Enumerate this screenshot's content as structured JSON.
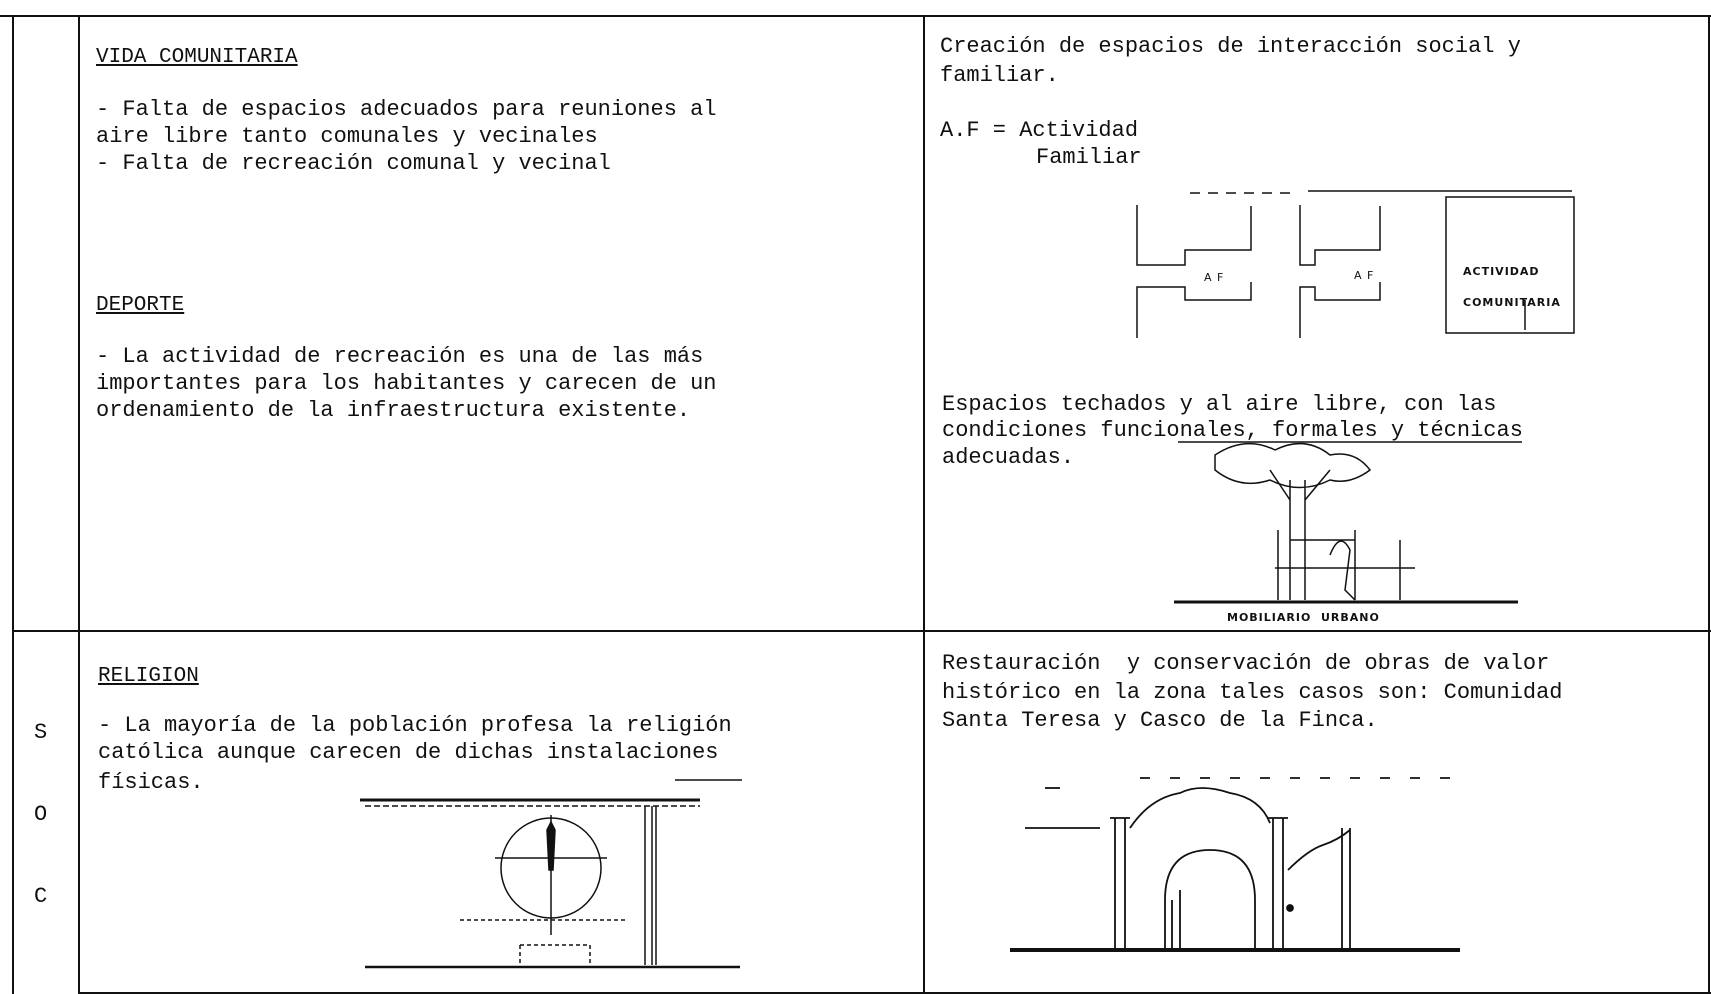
{
  "table": {
    "side_letters": [
      "S",
      "O",
      "C"
    ],
    "rows": [
      {
        "problems": [
          {
            "heading": "VIDA COMUNITARIA",
            "lines": [
              "- Falta de espacios adecuados para reuniones al",
              "aire libre tanto comunales y vecinales",
              "- Falta de recreación comunal y vecinal"
            ]
          },
          {
            "heading": "DEPORTE",
            "lines": [
              "- La actividad de recreación es una de las más",
              "importantes para los habitantes y carecen de un",
              "ordenamiento de la infraestructura existente."
            ]
          }
        ],
        "proposal": {
          "lines": [
            "Creación de espacios de interacción social y",
            "familiar."
          ],
          "legend": [
            "A.F = Actividad",
            "Familiar"
          ],
          "diagram": {
            "af_labels": [
              "A F",
              "A F"
            ],
            "community_label": [
              "ACTIVIDAD",
              "COMUNITARIA"
            ]
          },
          "lines2": [
            "Espacios techados y al aire libre, con las",
            "condiciones funcionales, formales y técnicas",
            "adecuadas."
          ],
          "caption": "MOBILIARIO  URBANO"
        }
      },
      {
        "problems": [
          {
            "heading": "RELIGION",
            "lines": [
              "- La mayoría de la población profesa la religión",
              "católica aunque carecen de dichas instalaciones",
              "físicas."
            ]
          }
        ],
        "proposal": {
          "lines": [
            "Restauración  y conservación de obras de valor",
            "histórico en la zona tales casos son: Comunidad",
            "Santa Teresa y Casco de la Finca."
          ]
        }
      }
    ]
  }
}
